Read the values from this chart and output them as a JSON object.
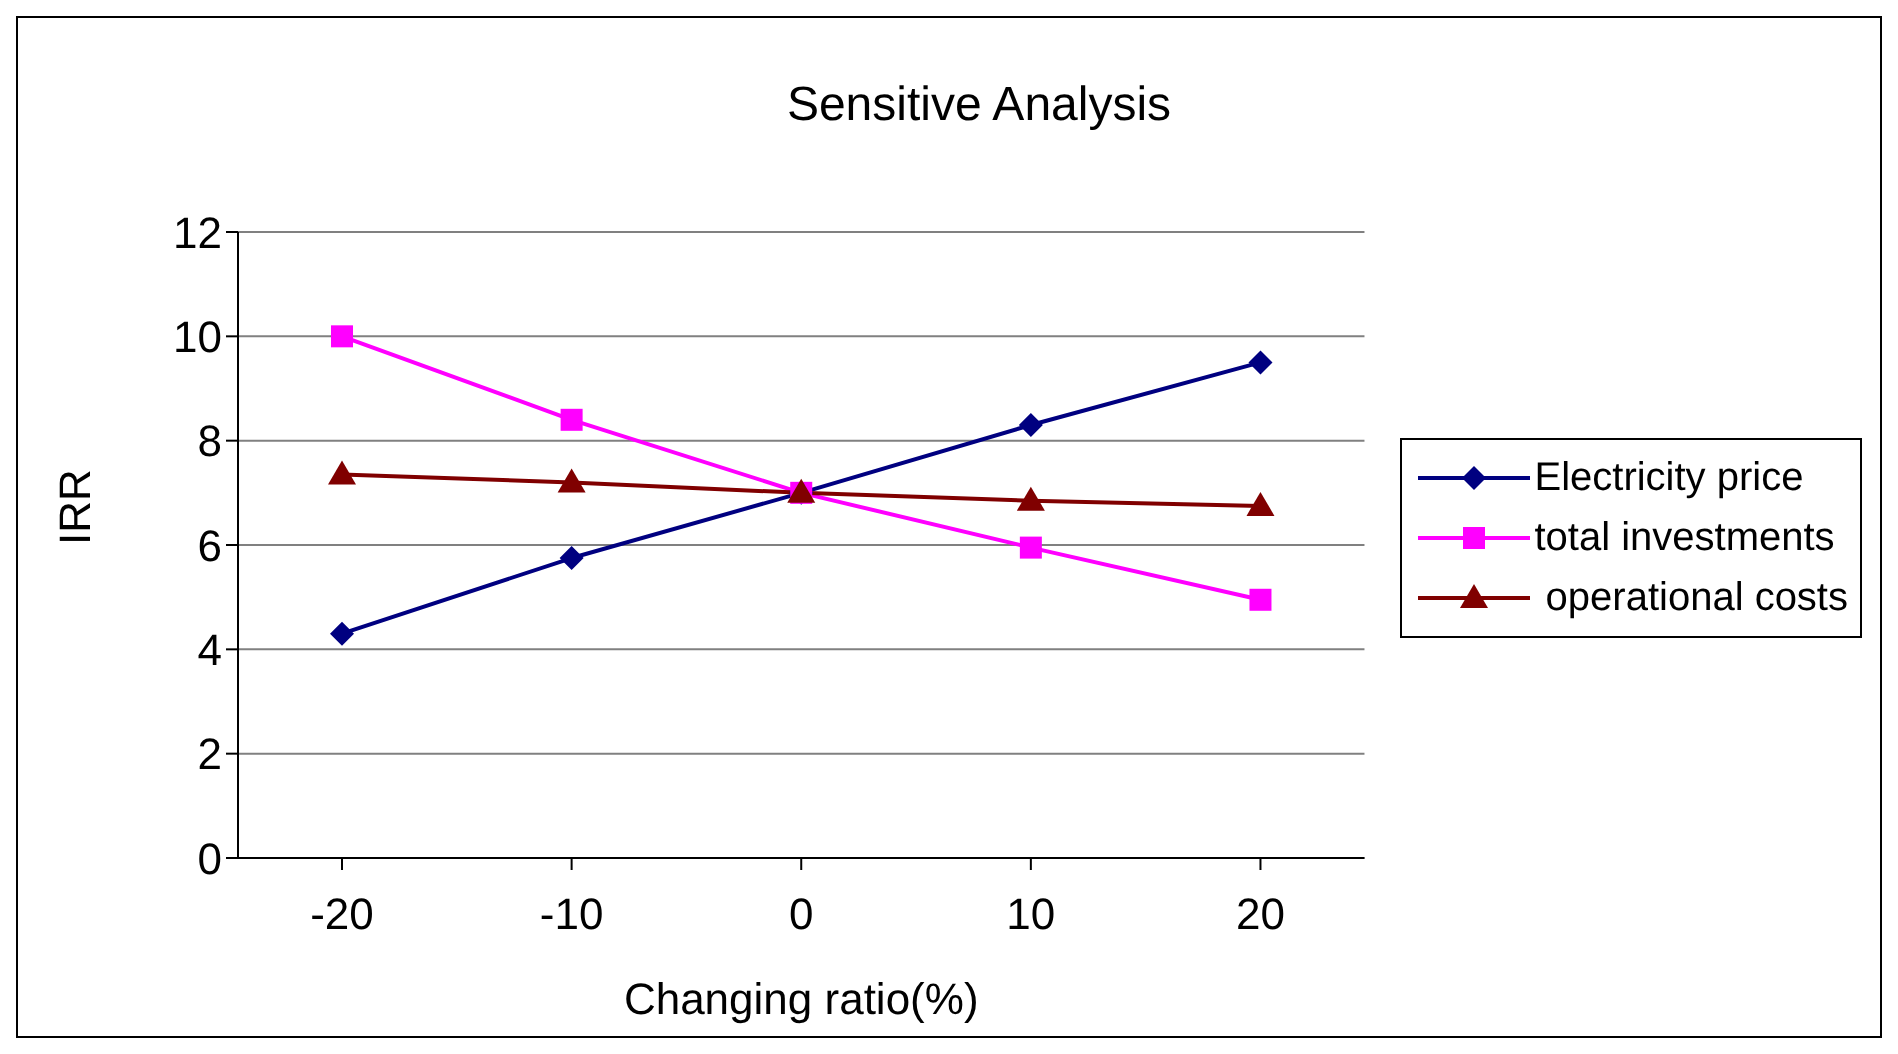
{
  "chart_data": {
    "type": "line",
    "title": "Sensitive Analysis",
    "xlabel": "Changing ratio(%)",
    "ylabel": "IRR",
    "categories": [
      "-20",
      "-10",
      "0",
      "10",
      "20"
    ],
    "series": [
      {
        "name": "Electricity price",
        "color": "#000080",
        "marker": "diamond",
        "values": [
          4.3,
          5.75,
          7.0,
          8.3,
          9.5
        ]
      },
      {
        "name": "total investments",
        "color": "#ff00ff",
        "marker": "square",
        "values": [
          10.0,
          8.4,
          7.0,
          5.95,
          4.95
        ]
      },
      {
        "name": " operational costs",
        "color": "#800000",
        "marker": "triangle",
        "values": [
          7.35,
          7.2,
          7.0,
          6.85,
          6.75
        ]
      }
    ],
    "ylim": [
      0,
      12
    ],
    "yticks": [
      0,
      2,
      4,
      6,
      8,
      10,
      12
    ],
    "grid": "y",
    "legend": "right"
  }
}
